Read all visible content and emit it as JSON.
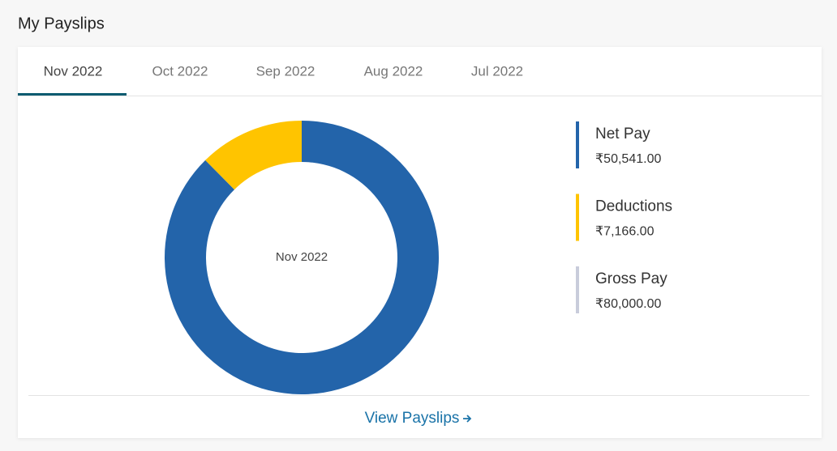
{
  "header": {
    "title": "My Payslips"
  },
  "tabs": [
    "Nov 2022",
    "Oct 2022",
    "Sep 2022",
    "Aug 2022",
    "Jul 2022"
  ],
  "active_tab": 0,
  "chart_data": {
    "type": "donut",
    "center_label": "Nov 2022",
    "series": [
      {
        "name": "Net Pay",
        "color": "#2364aa",
        "value": 50541,
        "value_label": "₹50,541.00"
      },
      {
        "name": "Deductions",
        "color": "#ffc400",
        "value": 7166,
        "value_label": "₹7,166.00"
      }
    ],
    "total": {
      "name": "Gross Pay",
      "color": "#c9ccdb",
      "value": 80000,
      "value_label": "₹80,000.00"
    }
  },
  "footer": {
    "link": "View Payslips"
  }
}
